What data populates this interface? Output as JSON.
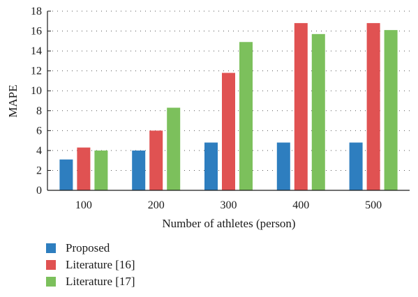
{
  "chart_data": {
    "type": "bar",
    "title": "",
    "xlabel": "Number of athletes (person)",
    "ylabel": "MAPE",
    "categories": [
      "100",
      "200",
      "300",
      "400",
      "500"
    ],
    "ylim": [
      0,
      18
    ],
    "yticks": [
      "0",
      "2",
      "4",
      "6",
      "8",
      "10",
      "12",
      "14",
      "16",
      "18"
    ],
    "grid": "dotted horizontal",
    "legend_position": "bottom-left",
    "series": [
      {
        "name": "Proposed",
        "color": "#2e7ebf",
        "values": [
          3.1,
          4.0,
          4.8,
          4.8,
          4.8
        ]
      },
      {
        "name": "Literature [16]",
        "color": "#e05252",
        "values": [
          4.3,
          6.0,
          11.8,
          16.8,
          16.8
        ]
      },
      {
        "name": "Literature [17]",
        "color": "#7cc05c",
        "values": [
          4.0,
          8.3,
          14.9,
          15.7,
          16.1
        ]
      }
    ]
  }
}
